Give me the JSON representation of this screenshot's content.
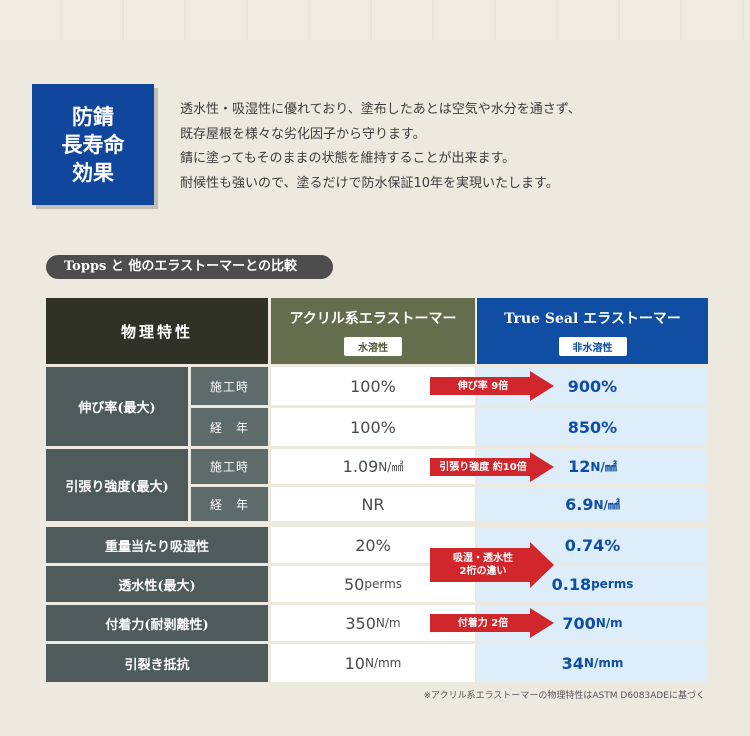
{
  "badge": {
    "line1": "防錆",
    "line2": "長寿命",
    "line3": "効果"
  },
  "intro": {
    "line1": "透水性・吸湿性に優れており、塗布したあとは空気や水分を通さず、",
    "line2": "既存屋根を様々な劣化因子から守ります。",
    "line3": "錆に塗ってもそのままの状態を維持することが出来ます。",
    "line4": "耐候性も強いので、塗るだけで防水保証10年を実現いたします。"
  },
  "section_title": "Topps と 他のエラストーマーとの比較",
  "table": {
    "header_property": "物理特性",
    "col_acrylic": {
      "title": "アクリル系エラストーマー",
      "sub": "水溶性"
    },
    "col_trueseal": {
      "title": "True Seal エラストーマー",
      "sub": "非水溶性"
    },
    "rows": [
      {
        "prop": "伸び率(最大)",
        "sub1": "施工時",
        "sub2": "経　年",
        "a1": "100%",
        "b1": "900%",
        "a2": "100%",
        "b2": "850%"
      },
      {
        "prop": "引張り強度(最大)",
        "sub1": "施工時",
        "sub2": "経　年",
        "a1_num": "1.09",
        "a1_unit": "N/㎟",
        "b1_num": "12",
        "b1_unit": "N/㎟",
        "a2": "NR",
        "b2_num": "6.9",
        "b2_unit": "N/㎟"
      },
      {
        "prop": "重量当たり吸湿性",
        "a_num": "20%",
        "b_num": "0.74%"
      },
      {
        "prop": "透水性(最大)",
        "a_num": "50",
        "a_unit": "perms",
        "b_num": "0.18",
        "b_unit": "perms"
      },
      {
        "prop": "付着力(耐剥離性)",
        "a_num": "350",
        "a_unit": "N/m",
        "b_num": "700",
        "b_unit": "N/m"
      },
      {
        "prop": "引裂き抵抗",
        "a_num": "10",
        "a_unit": "N/mm",
        "b_num": "34",
        "b_unit": "N/mm"
      }
    ],
    "arrows": {
      "elong": "伸び率 9倍",
      "tensile": "引張り強度 約10倍",
      "moisture_l1": "吸湿・透水性",
      "moisture_l2": "2桁の違い",
      "adhesion": "付着力 2倍"
    }
  },
  "footnote": "※アクリル系エラストーマーの物理特性はASTM D6083ADEに基づく",
  "colors": {
    "brand_blue": "#10479c",
    "arrow_red": "#d1262c",
    "acrylic_green": "#646e4c"
  }
}
